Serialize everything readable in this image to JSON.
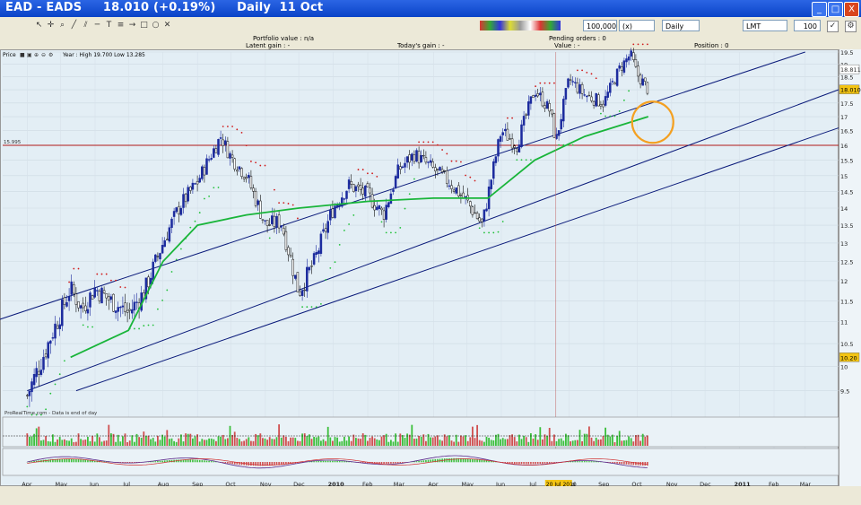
{
  "window": {
    "title": "EAD - EADS     18.010 (+0.19%)     Daily  11 Oct",
    "min_label": "_",
    "max_label": "□",
    "close_label": "X"
  },
  "toolbar": {
    "quantity": "100,000",
    "quantity_unit": "(x) units",
    "period": "Daily",
    "order_type": "LMT",
    "limit_value": "100"
  },
  "info": {
    "portfolio_value": "Portfolio value : n/a",
    "latent_gain": "Latent gain : -",
    "todays_gain": "Today's gain : -",
    "pending_orders": "Pending orders : 0",
    "value": "Value : -",
    "position": "Position : 0"
  },
  "chart_panel": {
    "label": "Price",
    "stats": "Year : High 19.700 Low 13.285",
    "line_label": "15.995",
    "watermark": "ProRealTime.com - Data is end of day",
    "date_tag": "20 Jul 2010"
  },
  "chart_data": {
    "type": "candlestick",
    "title": "EAD - EADS 18.010 (+0.19%) Daily 11 Oct",
    "ylim": [
      9,
      19.5
    ],
    "y_scale": "log",
    "y_ticks": [
      "19.5",
      "19",
      "18.5",
      "18",
      "17.5",
      "17",
      "16.5",
      "16",
      "15.5",
      "15",
      "14.5",
      "14",
      "13.5",
      "13",
      "12.5",
      "12",
      "11.5",
      "11",
      "10.5",
      "10",
      "9.5"
    ],
    "price_tags": {
      "current": "18.010",
      "top": "18.811",
      "low": "10.20"
    },
    "x_ticks": [
      "Apr",
      "May",
      "Jun",
      "Jul",
      "Aug",
      "Sep",
      "Oct",
      "Nov",
      "Dec",
      "2010",
      "Feb",
      "Mar",
      "Apr",
      "May",
      "Jun",
      "Jul",
      "Aug",
      "Sep",
      "Oct",
      "Nov",
      "Dec",
      "2011",
      "Feb",
      "Mar"
    ],
    "price_path": [
      [
        "2009-04-01",
        9.4
      ],
      [
        "2009-04-15",
        10.2
      ],
      [
        "2009-05-01",
        11.2
      ],
      [
        "2009-05-10",
        11.8
      ],
      [
        "2009-05-20",
        11.3
      ],
      [
        "2009-06-01",
        11.8
      ],
      [
        "2009-06-15",
        11.5
      ],
      [
        "2009-07-01",
        11.2
      ],
      [
        "2009-07-15",
        11.7
      ],
      [
        "2009-08-01",
        13.0
      ],
      [
        "2009-08-15",
        14.0
      ],
      [
        "2009-09-01",
        14.8
      ],
      [
        "2009-09-15",
        15.8
      ],
      [
        "2009-09-22",
        16.3
      ],
      [
        "2009-10-01",
        15.6
      ],
      [
        "2009-10-15",
        15.0
      ],
      [
        "2009-11-01",
        13.5
      ],
      [
        "2009-11-15",
        13.6
      ],
      [
        "2009-12-01",
        11.7
      ],
      [
        "2009-12-15",
        12.5
      ],
      [
        "2010-01-01",
        14.0
      ],
      [
        "2010-01-15",
        14.7
      ],
      [
        "2010-02-01",
        14.4
      ],
      [
        "2010-02-15",
        13.8
      ],
      [
        "2010-03-01",
        15.2
      ],
      [
        "2010-03-15",
        15.7
      ],
      [
        "2010-04-01",
        15.2
      ],
      [
        "2010-04-15",
        14.8
      ],
      [
        "2010-05-01",
        14.2
      ],
      [
        "2010-05-15",
        13.5
      ],
      [
        "2010-06-01",
        16.5
      ],
      [
        "2010-06-15",
        16.0
      ],
      [
        "2010-07-01",
        18.0
      ],
      [
        "2010-07-15",
        17.2
      ],
      [
        "2010-07-20",
        16.1
      ],
      [
        "2010-08-01",
        18.4
      ],
      [
        "2010-08-15",
        17.8
      ],
      [
        "2010-09-01",
        17.5
      ],
      [
        "2010-09-15",
        18.8
      ],
      [
        "2010-09-25",
        19.4
      ],
      [
        "2010-10-01",
        18.6
      ],
      [
        "2010-10-11",
        18.01
      ]
    ],
    "moving_average": [
      [
        "2009-05-10",
        10.2
      ],
      [
        "2009-07-01",
        10.8
      ],
      [
        "2009-08-01",
        12.5
      ],
      [
        "2009-09-01",
        13.5
      ],
      [
        "2009-10-15",
        13.8
      ],
      [
        "2009-12-01",
        14.0
      ],
      [
        "2010-02-01",
        14.2
      ],
      [
        "2010-04-01",
        14.3
      ],
      [
        "2010-05-20",
        14.3
      ],
      [
        "2010-07-01",
        15.5
      ],
      [
        "2010-08-15",
        16.3
      ],
      [
        "2010-10-11",
        17.0
      ]
    ],
    "channel_lines": [
      {
        "name": "upper",
        "from": [
          "2009-03-01",
          11.0
        ],
        "to": [
          "2011-03-01",
          19.5
        ]
      },
      {
        "name": "middle",
        "from": [
          "2009-04-01",
          9.5
        ],
        "to": [
          "2011-03-31",
          18.0
        ]
      },
      {
        "name": "lower",
        "from": [
          "2009-05-15",
          9.5
        ],
        "to": [
          "2011-03-31",
          16.6
        ]
      }
    ],
    "horizontal_line": 15.995,
    "highlight_circle": {
      "x": "2010-10-15",
      "y": 16.8
    },
    "colors": {
      "up": "#1b2a9e",
      "down": "#101010",
      "sar_up": "#22c13a",
      "sar_down": "#d01a1a",
      "ma": "#19b53a",
      "channel": "#0a1a7a",
      "hline": "#b01818",
      "circle": "#f4a020"
    }
  }
}
